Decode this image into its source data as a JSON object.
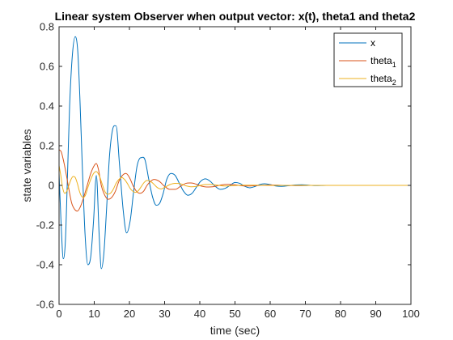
{
  "chart_data": {
    "type": "line",
    "title": "Linear system Observer when output vector: x(t), theta1 and theta2",
    "xlabel": "time (sec)",
    "ylabel": "state variables",
    "xlim": [
      0,
      100
    ],
    "ylim": [
      -0.6,
      0.8
    ],
    "xticks": [
      0,
      10,
      20,
      30,
      40,
      50,
      60,
      70,
      80,
      90,
      100
    ],
    "yticks": [
      -0.6,
      -0.4,
      -0.2,
      0,
      0.2,
      0.4,
      0.6,
      0.8
    ],
    "xtick_labels": [
      "0",
      "10",
      "20",
      "30",
      "40",
      "50",
      "60",
      "70",
      "80",
      "90",
      "100"
    ],
    "ytick_labels": [
      "-0.6",
      "-0.4",
      "-0.2",
      "0",
      "0.2",
      "0.4",
      "0.6",
      "0.8"
    ],
    "grid": false,
    "legend_position": "top-right",
    "series": [
      {
        "name": "x",
        "legend_base": "x",
        "legend_sub": "",
        "color": "#0072BD",
        "x": [
          0,
          0.6,
          1.2,
          1.8,
          2.4,
          3.0,
          3.8,
          4.6,
          5.3,
          5.9,
          6.6,
          7.4,
          8.2,
          9.0,
          9.8,
          10.6,
          11.4,
          12.0,
          12.7,
          13.5,
          14.3,
          15.2,
          16.2,
          17.2,
          18.2,
          19.2,
          20.2,
          21.2,
          22.2,
          23.3,
          24.4,
          25.5,
          26.6,
          27.6,
          28.6,
          29.6,
          30.6,
          31.8,
          33.0,
          34.2,
          35.4,
          36.6,
          37.8,
          39.0,
          40.2,
          41.6,
          43.0,
          44.4,
          45.8,
          47.2,
          48.6,
          50.0,
          51.4,
          52.8,
          54.2,
          55.6,
          57.0,
          58.4,
          60.0,
          61.6,
          63.2,
          65.0,
          67.0,
          69.0,
          71.0,
          73.0,
          76.0,
          80.0,
          85.0,
          90.0,
          95.0,
          100.0
        ],
        "y": [
          0.06,
          -0.2,
          -0.37,
          -0.28,
          0.05,
          0.4,
          0.66,
          0.75,
          0.68,
          0.45,
          0.1,
          -0.25,
          -0.4,
          -0.36,
          -0.18,
          0.05,
          -0.25,
          -0.42,
          -0.35,
          -0.12,
          0.14,
          0.28,
          0.3,
          0.1,
          -0.12,
          -0.24,
          -0.18,
          -0.03,
          0.1,
          0.14,
          0.13,
          0.03,
          -0.06,
          -0.1,
          -0.09,
          -0.04,
          0.03,
          0.06,
          0.05,
          0.01,
          -0.03,
          -0.05,
          -0.04,
          -0.01,
          0.02,
          0.033,
          0.02,
          -0.005,
          -0.02,
          -0.015,
          0.0,
          0.015,
          0.01,
          -0.005,
          -0.012,
          -0.006,
          0.004,
          0.008,
          0.004,
          -0.003,
          -0.005,
          -0.002,
          0.002,
          0.003,
          0.001,
          -0.001,
          0.0,
          0.0,
          0.0,
          0.0,
          0.0,
          0.0
        ]
      },
      {
        "name": "theta1",
        "legend_base": "theta",
        "legend_sub": "1",
        "color": "#D95319",
        "x": [
          0,
          0.6,
          1.2,
          2.0,
          2.8,
          3.6,
          4.4,
          5.2,
          6.0,
          7.0,
          8.0,
          9.0,
          10.0,
          10.6,
          11.2,
          12.0,
          13.0,
          14.0,
          15.0,
          16.0,
          17.0,
          18.0,
          19.0,
          20.0,
          21.0,
          22.0,
          23.0,
          24.0,
          25.0,
          26.0,
          27.0,
          28.5,
          30.0,
          31.5,
          33.0,
          34.5,
          36.0,
          37.5,
          39.0,
          40.5,
          42.0,
          44.0,
          46.0,
          48.0,
          50.0,
          52.0,
          54.0,
          57.0,
          60.0,
          64.0,
          68.0,
          72.0,
          78.0,
          85.0,
          92.0,
          100.0
        ],
        "y": [
          0.18,
          0.17,
          0.13,
          0.06,
          -0.02,
          -0.09,
          -0.12,
          -0.13,
          -0.11,
          -0.06,
          0.0,
          0.06,
          0.1,
          0.11,
          0.08,
          0.0,
          -0.05,
          -0.07,
          -0.06,
          -0.03,
          0.02,
          0.05,
          0.06,
          0.04,
          0.0,
          -0.03,
          -0.04,
          -0.03,
          0.0,
          0.02,
          0.03,
          0.02,
          -0.005,
          -0.02,
          -0.02,
          -0.005,
          0.01,
          0.012,
          0.006,
          -0.004,
          -0.008,
          -0.006,
          0.002,
          0.005,
          0.003,
          -0.002,
          -0.003,
          0.0,
          0.002,
          0.0,
          -0.001,
          0.0,
          0.0,
          0.0,
          0.0,
          0.0
        ]
      },
      {
        "name": "theta2",
        "legend_base": "theta",
        "legend_sub": "2",
        "color": "#EDB120",
        "x": [
          0,
          0.5,
          1.0,
          1.6,
          2.2,
          2.8,
          3.4,
          4.0,
          4.6,
          5.2,
          5.8,
          6.4,
          7.0,
          7.6,
          8.2,
          9.0,
          9.8,
          10.6,
          11.4,
          12.2,
          13.0,
          13.8,
          14.6,
          15.4,
          16.2,
          17.0,
          17.8,
          18.6,
          19.4,
          20.2,
          21.0,
          21.8,
          22.6,
          23.4,
          24.2,
          25.0,
          26.0,
          27.0,
          28.0,
          29.0,
          30.0,
          31.5,
          33.0,
          34.5,
          36.0,
          37.5,
          39.0,
          41.0,
          43.0,
          45.0,
          47.0,
          49.0,
          52.0,
          56.0,
          60.0,
          66.0,
          72.0,
          80.0,
          90.0,
          100.0
        ],
        "y": [
          0.1,
          0.05,
          -0.01,
          -0.04,
          -0.03,
          0.0,
          0.03,
          0.045,
          0.04,
          0.01,
          -0.03,
          -0.055,
          -0.06,
          -0.045,
          -0.01,
          0.03,
          0.06,
          0.07,
          0.05,
          0.01,
          -0.03,
          -0.045,
          -0.04,
          -0.02,
          0.01,
          0.03,
          0.04,
          0.03,
          0.01,
          -0.015,
          -0.03,
          -0.035,
          -0.025,
          -0.005,
          0.015,
          0.025,
          0.02,
          0.005,
          -0.012,
          -0.018,
          -0.01,
          0.004,
          0.01,
          0.008,
          -0.002,
          -0.007,
          -0.005,
          0.003,
          0.005,
          0.001,
          -0.003,
          -0.002,
          0.001,
          0.001,
          0.0,
          0.0,
          0.0,
          0.0,
          0.0,
          0.0
        ]
      }
    ]
  }
}
